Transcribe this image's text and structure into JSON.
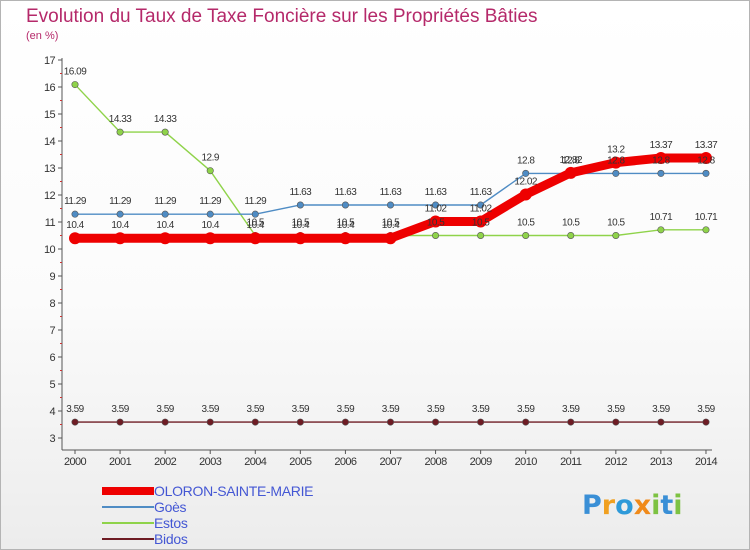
{
  "chart_data": {
    "type": "line",
    "title": "Evolution du Taux de Taxe Foncière sur les Propriétés Bâties",
    "subtitle": "(en %)",
    "x": [
      2000,
      2001,
      2002,
      2003,
      2004,
      2005,
      2006,
      2007,
      2008,
      2009,
      2010,
      2011,
      2012,
      2013,
      2014
    ],
    "xlabels": [
      "2000",
      "2001",
      "2002",
      "2003",
      "2004",
      "2005",
      "2006",
      "2007",
      "2008",
      "2009",
      "2010",
      "2011",
      "2012",
      "2013",
      "2014"
    ],
    "ylim": [
      3,
      17
    ],
    "yticks": [
      "3",
      "4",
      "5",
      "6",
      "7",
      "8",
      "9",
      "10",
      "11",
      "12",
      "13",
      "14",
      "15",
      "16",
      "17"
    ],
    "grid": false,
    "series": [
      {
        "name": "Bidos",
        "color": "#6e1c24",
        "values": [
          3.59,
          3.59,
          3.59,
          3.59,
          3.59,
          3.59,
          3.59,
          3.59,
          3.59,
          3.59,
          3.59,
          3.59,
          3.59,
          3.59,
          3.59
        ],
        "labels": [
          "3.59",
          "3.59",
          "3.59",
          "3.59",
          "3.59",
          "3.59",
          "3.59",
          "3.59",
          "3.59",
          "3.59",
          "3.59",
          "3.59",
          "3.59",
          "3.59",
          "3.59"
        ]
      },
      {
        "name": "Estos",
        "color": "#8fd34a",
        "values": [
          16.09,
          14.33,
          14.33,
          12.9,
          10.5,
          10.5,
          10.5,
          10.5,
          10.5,
          10.5,
          10.5,
          10.5,
          10.5,
          10.71,
          10.71
        ],
        "labels": [
          "16.09",
          "14.33",
          "14.33",
          "12.9",
          "10.5",
          "10.5",
          "10.5",
          "10.5",
          "10.5",
          "10.5",
          "10.5",
          "10.5",
          "10.5",
          "10.71",
          "10.71"
        ]
      },
      {
        "name": "Goès",
        "color": "#4f8cc4",
        "values": [
          11.29,
          11.29,
          11.29,
          11.29,
          11.29,
          11.63,
          11.63,
          11.63,
          11.63,
          11.63,
          12.8,
          12.8,
          12.8,
          12.8,
          12.8
        ],
        "labels": [
          "11.29",
          "11.29",
          "11.29",
          "11.29",
          "11.29",
          "11.63",
          "11.63",
          "11.63",
          "11.63",
          "11.63",
          "12.8",
          "12.8",
          "12.8",
          "12.8",
          "12.8"
        ]
      },
      {
        "name": "OLORON-SAINTE-MARIE",
        "color": "#ee0000",
        "values": [
          10.4,
          10.4,
          10.4,
          10.4,
          10.4,
          10.4,
          10.4,
          10.4,
          11.02,
          11.02,
          12.02,
          12.82,
          13.2,
          13.37,
          13.37
        ],
        "labels": [
          "10.4",
          "10.4",
          "10.4",
          "10.4",
          "10.4",
          "10.4",
          "10.4",
          "10.4",
          "11.02",
          "11.02",
          "12.02",
          "12.82",
          "13.2",
          "13.37",
          "13.37"
        ]
      }
    ],
    "legend": [
      "OLORON-SAINTE-MARIE",
      "Goès",
      "Estos",
      "Bidos"
    ],
    "legend_position": "bottom-left"
  },
  "logo": {
    "text": "Proxiti",
    "letters": [
      "P",
      "r",
      "o",
      "x",
      "i",
      "t",
      "i"
    ],
    "colors": [
      "#3a8fd6",
      "#f0a020",
      "#2f9ad9",
      "#f08a1a",
      "#7dc242",
      "#3a8fd6",
      "#7dc242"
    ]
  }
}
